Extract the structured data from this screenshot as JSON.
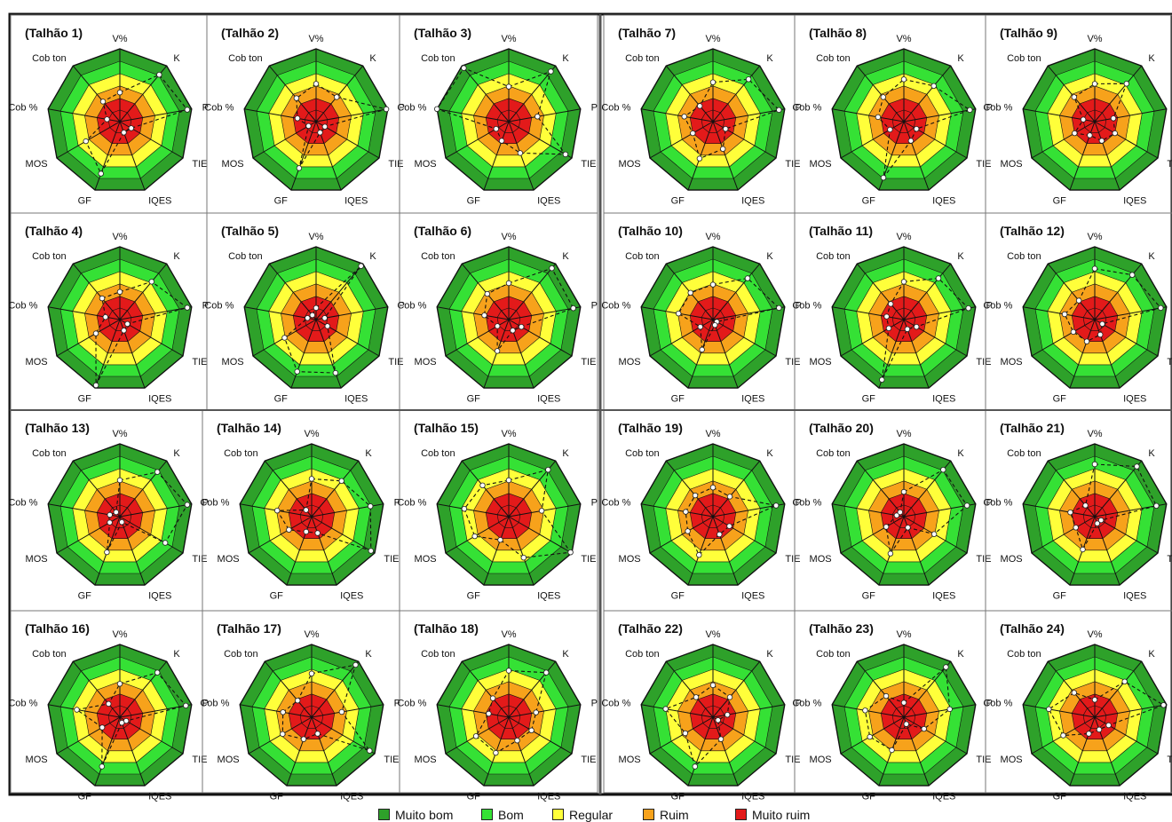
{
  "chart_data": {
    "type": "radar",
    "axes": [
      "V%",
      "K",
      "P",
      "TIE",
      "IQES",
      "GF",
      "MOS",
      "Cob %",
      "Cob ton"
    ],
    "axis_range": [
      0,
      5
    ],
    "zones": [
      {
        "label": "Muito bom",
        "color": "#2ea12a"
      },
      {
        "label": "Bom",
        "color": "#35e135"
      },
      {
        "label": "Regular",
        "color": "#ffff3a"
      },
      {
        "label": "Ruim",
        "color": "#f7a21b"
      },
      {
        "label": "Muito ruim",
        "color": "#e31a1a"
      }
    ],
    "plots": [
      {
        "title": "(Talhão 1)",
        "values": [
          2.0,
          4.2,
          4.7,
          0.9,
          0.8,
          3.8,
          2.7,
          0.9,
          1.8
        ]
      },
      {
        "title": "(Talhão 2)",
        "values": [
          2.6,
          2.2,
          4.9,
          0.7,
          0.8,
          3.4,
          0.6,
          1.3,
          2.1
        ]
      },
      {
        "title": "(Talhão 3)",
        "values": [
          2.4,
          4.5,
          2.0,
          4.5,
          2.3,
          1.4,
          1.0,
          5.0,
          4.8
        ]
      },
      {
        "title": "(Talhão 7)",
        "values": [
          2.7,
          3.8,
          4.6,
          1.0,
          2.0,
          2.7,
          1.6,
          2.0,
          1.4
        ]
      },
      {
        "title": "(Talhão 8)",
        "values": [
          2.9,
          3.2,
          4.6,
          1.0,
          1.4,
          4.1,
          1.1,
          1.8,
          2.2
        ]
      },
      {
        "title": "(Talhão 9)",
        "values": [
          2.6,
          3.4,
          1.3,
          1.6,
          1.4,
          1.0,
          1.6,
          0.8,
          2.2
        ]
      },
      {
        "title": "(Talhão 4)",
        "values": [
          1.9,
          3.4,
          4.7,
          0.6,
          0.8,
          4.8,
          1.9,
          1.0,
          1.9
        ]
      },
      {
        "title": "(Talhão 5)",
        "values": [
          0.8,
          4.8,
          0.6,
          0.9,
          3.9,
          3.8,
          2.5,
          0.6,
          0.4
        ]
      },
      {
        "title": "(Talhão 6)",
        "values": [
          2.5,
          4.6,
          4.5,
          1.0,
          0.8,
          2.3,
          0.9,
          1.7,
          2.3
        ]
      },
      {
        "title": "(Talhão 10)",
        "values": [
          2.4,
          3.7,
          4.6,
          0.3,
          0.4,
          2.2,
          1.0,
          2.4,
          2.4
        ]
      },
      {
        "title": "(Talhão 11)",
        "values": [
          2.6,
          3.7,
          4.5,
          1.0,
          0.7,
          4.4,
          1.2,
          1.2,
          1.4
        ]
      },
      {
        "title": "(Talhão 12)",
        "values": [
          3.5,
          4.0,
          4.6,
          0.6,
          1.1,
          1.6,
          1.7,
          2.1,
          1.7
        ]
      },
      {
        "title": "(Talhão 13)",
        "values": [
          2.5,
          4.0,
          4.7,
          3.6,
          0.4,
          2.6,
          0.8,
          0.7,
          0.4
        ]
      },
      {
        "title": "(Talhão 14)",
        "values": [
          2.6,
          3.2,
          4.1,
          4.7,
          1.2,
          1.1,
          1.8,
          2.4,
          0.6
        ]
      },
      {
        "title": "(Talhão 15)",
        "values": [
          2.5,
          4.2,
          2.3,
          4.9,
          3.0,
          1.7,
          2.7,
          3.1,
          2.8
        ]
      },
      {
        "title": "(Talhão 19)",
        "values": [
          2.0,
          1.8,
          4.4,
          1.3,
          1.3,
          2.8,
          2.0,
          1.9,
          1.9
        ]
      },
      {
        "title": "(Talhão 20)",
        "values": [
          1.7,
          4.2,
          4.4,
          2.4,
          0.8,
          2.7,
          1.4,
          0.5,
          0.4
        ]
      },
      {
        "title": "(Talhão 21)",
        "values": [
          3.6,
          4.5,
          4.3,
          0.5,
          0.5,
          2.4,
          1.5,
          1.7,
          1.0
        ]
      },
      {
        "title": "(Talhão 16)",
        "values": [
          2.3,
          4.0,
          4.6,
          0.5,
          0.4,
          3.6,
          1.4,
          3.0,
          1.2
        ]
      },
      {
        "title": "(Talhão 17)",
        "values": [
          3.0,
          4.7,
          2.1,
          4.6,
          1.2,
          1.6,
          2.3,
          2.0,
          1.5
        ]
      },
      {
        "title": "(Talhão 18)",
        "values": [
          3.2,
          4.0,
          1.9,
          1.8,
          1.7,
          2.6,
          2.6,
          1.4,
          1.7
        ]
      },
      {
        "title": "(Talhão 22)",
        "values": [
          2.2,
          1.8,
          1.0,
          0.4,
          1.6,
          3.6,
          2.2,
          3.3,
          1.8
        ]
      },
      {
        "title": "(Talhão 23)",
        "values": [
          1.0,
          4.5,
          3.2,
          1.6,
          0.5,
          2.4,
          2.7,
          2.7,
          1.9
        ]
      },
      {
        "title": "(Talhão 24)",
        "values": [
          1.2,
          3.2,
          4.8,
          1.1,
          0.9,
          1.2,
          2.5,
          3.2,
          2.2
        ]
      }
    ]
  },
  "legend": [
    {
      "label": "Muito bom",
      "color": "#2ea12a"
    },
    {
      "label": "Bom",
      "color": "#35e135"
    },
    {
      "label": "Regular",
      "color": "#ffff3a"
    },
    {
      "label": "Ruim",
      "color": "#f7a21b"
    },
    {
      "label": "Muito ruim",
      "color": "#e31a1a"
    }
  ]
}
